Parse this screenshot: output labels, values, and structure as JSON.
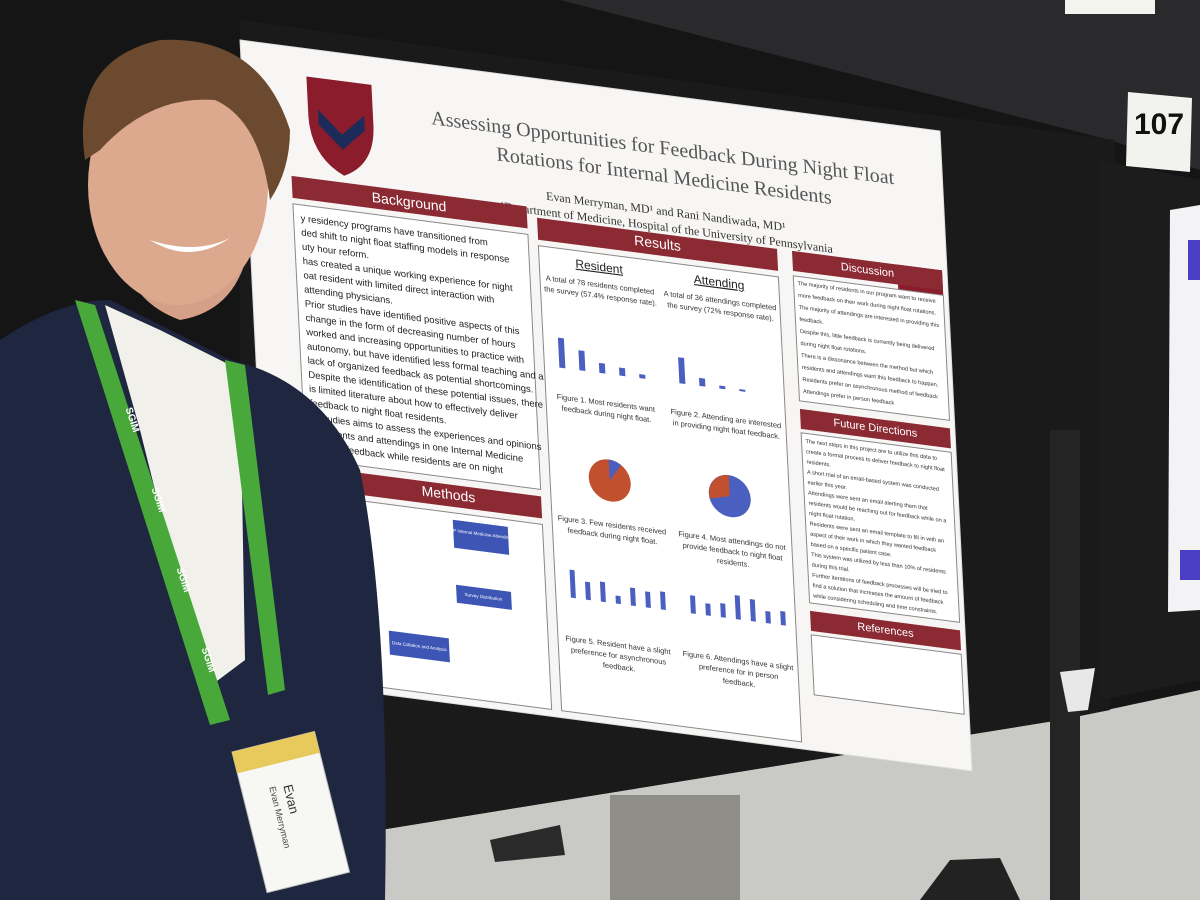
{
  "poster": {
    "title_lines": [
      "Assessing Opportunities for Feedback During Night Float",
      "Rotations for Internal Medicine Residents"
    ],
    "authors": "Evan Merryman, MD¹ and Rani Nandiwada, MD¹",
    "affiliation": "¹Department of Medicine, Hospital of the University of Pennsylvania",
    "background": {
      "heading": "Background",
      "lines": [
        "y residency programs have transitioned from",
        "ded shift to night float staffing models in response",
        "uty hour reform.",
        "has created a unique working experience for night",
        "oat resident with limited direct interaction with",
        "attending physicians.",
        "Prior studies have identified positive aspects of this",
        "change in the form of decreasing number of hours",
        "worked and increasing opportunities to practice with",
        "autonomy, but have identified less formal teaching and a",
        "lack of organized feedback as potential shortcomings.",
        "Despite the identification of these potential issues, there",
        "is limited literature about how to effectively deliver",
        "feedback to night float residents.",
        "is studies aims to assess the experiences and opinions",
        "f residents and attendings in one Internal Medicine",
        "garding feedback while residents are on night"
      ]
    },
    "methods": {
      "heading": "Methods",
      "boxes": [
        "HUP Internal Medicine Attendings",
        "Survey Distribution",
        "Data Collation and Analysis"
      ]
    },
    "results": {
      "heading": "Results",
      "resident_heading": "Resident",
      "attending_heading": "Attending",
      "resident_summary": [
        "A total of 78 residents completed",
        "the survey (57.4% response rate)."
      ],
      "attending_summary": [
        "A total of 36 attendings completed",
        "the survey (72% response rate)."
      ],
      "figure_captions": [
        [
          "Figure 1. Most residents want",
          "feedback during night float."
        ],
        [
          "Figure 2. Attending are interested",
          "in providing night float feedback."
        ],
        [
          "Figure 3. Few residents received",
          "feedback during night float."
        ],
        [
          "Figure 4. Most attendings do not",
          "provide feedback to night float",
          "residents."
        ],
        [
          "Figure 5. Resident have a slight",
          "preference for asynchronous",
          "feedback."
        ],
        [
          "Figure 6. Attendings have a slight",
          "preference for in person",
          "feedback."
        ]
      ]
    },
    "discussion": {
      "heading": "Discussion",
      "lines": [
        "The majority of residents in our program want to receive",
        "more feedback on their work during night float rotations.",
        "The majority of attendings are interested in providing this",
        "feedback.",
        "Despite this, little feedback is currently being delivered",
        "during night float rotations.",
        "There is a dissonance between the method but which",
        "residents and attendings want this feedback to happen.",
        "Residents prefer an asynchronous method of feedback",
        "Attendings prefer in person feedback"
      ]
    },
    "future_directions": {
      "heading": "Future Directions",
      "lines": [
        "The next steps in this project are to utilize this data to",
        "create a formal process to deliver feedback to night float",
        "residents.",
        "A short trial of an email-based system was conducted",
        "earlier this year.",
        "Attendings were sent an email alerting them that",
        "residents would be reaching out for feedback while on a",
        "night float rotation.",
        "Residents were sent an email template to fill in with an",
        "aspect of their work in which they wanted feedback",
        "based on a specific patient case.",
        "This system was utilized by less than 10% of residents",
        "during this trial.",
        "Further iterations of feedback processes will be tried to",
        "find a solution that increases the amount of feedback",
        "while considering scheduling and time constraints."
      ]
    },
    "references": {
      "heading": "References"
    }
  },
  "booth_number": "107",
  "lanyard_text": "SGIM",
  "badge": {
    "first_name": "Evan",
    "full_name": "Evan Merryman"
  }
}
